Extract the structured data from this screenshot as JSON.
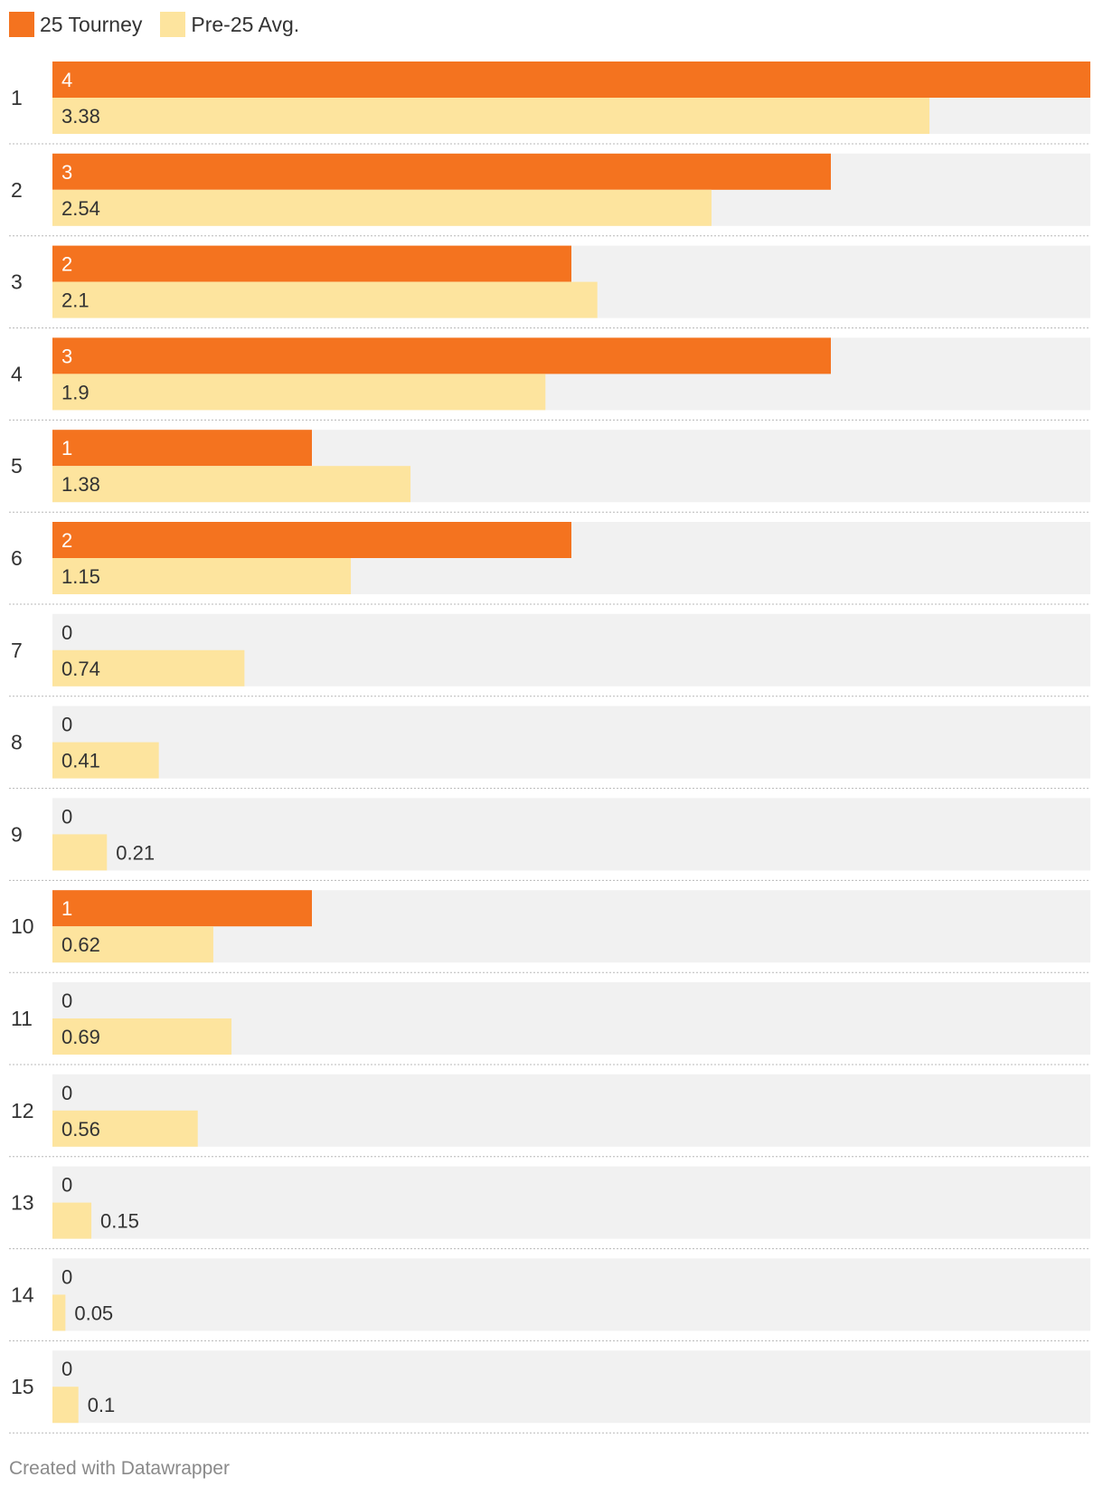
{
  "chart_data": {
    "type": "bar",
    "orientation": "horizontal",
    "categories": [
      "1",
      "2",
      "3",
      "4",
      "5",
      "6",
      "7",
      "8",
      "9",
      "10",
      "11",
      "12",
      "13",
      "14",
      "15"
    ],
    "series": [
      {
        "name": "25 Tourney",
        "color": "#f4731f",
        "values": [
          4,
          3,
          2,
          3,
          1,
          2,
          0,
          0,
          0,
          1,
          0,
          0,
          0,
          0,
          0
        ]
      },
      {
        "name": "Pre-25 Avg.",
        "color": "#fde49e",
        "values": [
          3.38,
          2.54,
          2.1,
          1.9,
          1.38,
          1.15,
          0.74,
          0.41,
          0.21,
          0.62,
          0.69,
          0.56,
          0.15,
          0.05,
          0.1
        ]
      }
    ],
    "xlim": [
      0,
      4
    ],
    "background_color": "#f1f1f1",
    "grid": false,
    "legend_position": "top-left"
  },
  "legend": {
    "items": [
      {
        "label": "25 Tourney",
        "color": "#f4731f"
      },
      {
        "label": "Pre-25 Avg.",
        "color": "#fde49e"
      }
    ]
  },
  "footer": {
    "credit": "Created with Datawrapper"
  }
}
